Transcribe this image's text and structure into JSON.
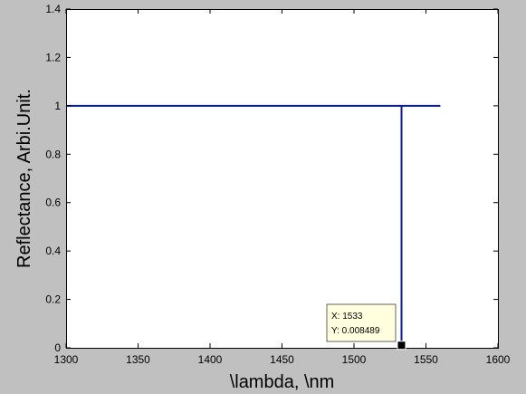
{
  "chart_data": {
    "type": "line",
    "xlabel": "\\lambda, \\nm",
    "ylabel": "Reflectance, Arbi.Unit.",
    "xlim": [
      1300,
      1600
    ],
    "ylim": [
      0,
      1.4
    ],
    "xticks": [
      1300,
      1350,
      1400,
      1450,
      1500,
      1550,
      1600
    ],
    "yticks": [
      0,
      0.2,
      0.4,
      0.6,
      0.8,
      1,
      1.2,
      1.4
    ],
    "grid": false,
    "series": [
      {
        "color": "#0b1e8c",
        "x": [
          1300,
          1533,
          1533,
          1533,
          1560
        ],
        "y": [
          1,
          1,
          0.008489,
          1,
          1
        ]
      }
    ],
    "datatip": {
      "x_label": "X: 1533",
      "y_label": "Y: 0.008489",
      "x": 1533,
      "y": 0.008489
    }
  },
  "colors": {
    "figure_bg": "#c0c0c0",
    "axes_bg": "#ffffff",
    "line": "#0b1e8c",
    "datatip_bg": "#ffffe0"
  }
}
